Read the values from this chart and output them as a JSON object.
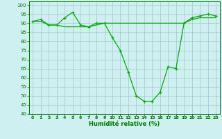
{
  "title": "",
  "xlabel": "Humidité relative (%)",
  "ylabel": "",
  "bg_color": "#cff0f0",
  "grid_color": "#aacccc",
  "line_color": "#00aa00",
  "marker_color": "#00aa00",
  "xlim": [
    -0.5,
    23.5
  ],
  "ylim": [
    40,
    102
  ],
  "yticks": [
    40,
    45,
    50,
    55,
    60,
    65,
    70,
    75,
    80,
    85,
    90,
    95,
    100
  ],
  "xticks": [
    0,
    1,
    2,
    3,
    4,
    5,
    6,
    7,
    8,
    9,
    10,
    11,
    12,
    13,
    14,
    15,
    16,
    17,
    18,
    19,
    20,
    21,
    22,
    23
  ],
  "series1_x": [
    0,
    1,
    2,
    3,
    4,
    5,
    6,
    7,
    8,
    9,
    10,
    11,
    12,
    13,
    14,
    15,
    16,
    17,
    18,
    19,
    20,
    21,
    22,
    23
  ],
  "series1_y": [
    91,
    92,
    89,
    89,
    93,
    96,
    89,
    88,
    90,
    90,
    82,
    75,
    63,
    50,
    47,
    47,
    52,
    66,
    65,
    90,
    93,
    94,
    95,
    94
  ],
  "series2_x": [
    0,
    1,
    2,
    3,
    4,
    5,
    6,
    7,
    8,
    9,
    10,
    11,
    12,
    13,
    14,
    15,
    16,
    17,
    18,
    19,
    20,
    21,
    22,
    23
  ],
  "series2_y": [
    91,
    91,
    89,
    89,
    88,
    88,
    88,
    88,
    89,
    90,
    90,
    90,
    90,
    90,
    90,
    90,
    90,
    90,
    90,
    90,
    92,
    93,
    93,
    93
  ]
}
